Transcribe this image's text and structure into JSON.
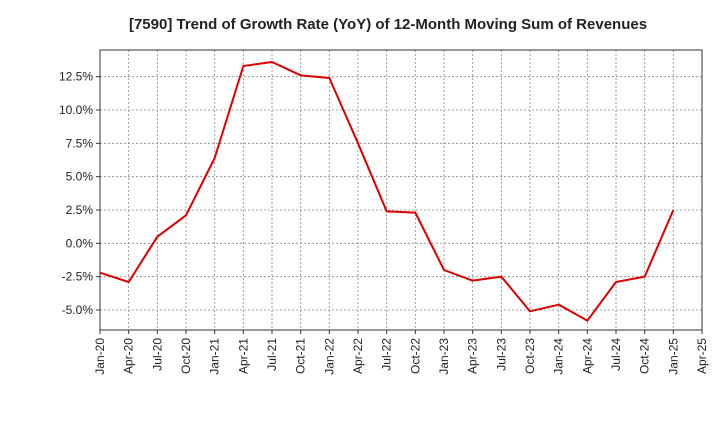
{
  "chart_data": {
    "type": "line",
    "title": "[7590]  Trend of Growth Rate (YoY) of 12-Month Moving Sum of Revenues",
    "xlabel": "",
    "ylabel": "",
    "x_tick_labels": [
      "Jan-20",
      "Apr-20",
      "Jul-20",
      "Oct-20",
      "Jan-21",
      "Apr-21",
      "Jul-21",
      "Oct-21",
      "Jan-22",
      "Apr-22",
      "Jul-22",
      "Oct-22",
      "Jan-23",
      "Apr-23",
      "Jul-23",
      "Oct-23",
      "Jan-24",
      "Apr-24",
      "Jul-24",
      "Oct-24",
      "Jan-25",
      "Apr-25"
    ],
    "y_ticks": [
      -5.0,
      -2.5,
      0.0,
      2.5,
      5.0,
      7.5,
      10.0,
      12.5
    ],
    "y_tick_labels": [
      "-5.0%",
      "-2.5%",
      "0.0%",
      "2.5%",
      "5.0%",
      "7.5%",
      "10.0%",
      "12.5%"
    ],
    "ylim": [
      -6.5,
      14.5
    ],
    "grid": true,
    "series": [
      {
        "color": "#dd0000",
        "x": [
          "Jan-20",
          "Apr-20",
          "Jul-20",
          "Oct-20",
          "Jan-21",
          "Apr-21",
          "Jul-21",
          "Oct-21",
          "Jan-22",
          "Apr-22",
          "Jul-22",
          "Oct-22",
          "Jan-23",
          "Apr-23",
          "Jul-23",
          "Oct-23",
          "Jan-24",
          "Apr-24",
          "Jul-24",
          "Oct-24",
          "Jan-25"
        ],
        "values": [
          -2.2,
          -2.9,
          0.5,
          2.1,
          6.4,
          13.3,
          13.6,
          12.6,
          12.4,
          7.5,
          2.4,
          2.3,
          -2.0,
          -2.8,
          -2.5,
          -5.1,
          -4.6,
          -5.8,
          -2.9,
          -2.5,
          2.5
        ]
      }
    ]
  }
}
